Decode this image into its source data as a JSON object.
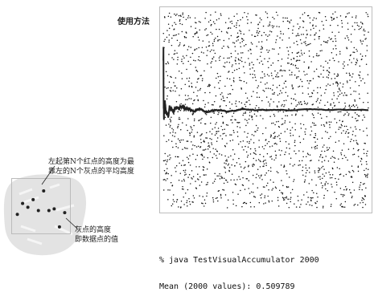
{
  "section_label": "使用方法",
  "annotations": {
    "top_line1": "左起第N个红点的高度为最",
    "top_line2": "靠左的N个灰点的平均高度",
    "bottom_line1": "灰点的高度",
    "bottom_line2": "即数据点的值"
  },
  "console": {
    "command": "% java TestVisualAccumulator 2000",
    "result": "Mean (2000 values): 0.509789"
  },
  "chart_data": [
    {
      "type": "scatter",
      "title": "",
      "xlabel": "",
      "ylabel": "",
      "x_range": [
        0,
        2000
      ],
      "ylim": [
        0,
        1
      ],
      "grid": false,
      "n_points": 2000,
      "series": [
        {
          "values_summary": "uniform random values in [0,1], one per index"
        },
        {
          "kind": "running-mean",
          "final_value": 0.509789
        }
      ]
    },
    {
      "type": "scatter",
      "title": "",
      "inset": true,
      "points": [
        {
          "x": 1,
          "y": 0.35
        },
        {
          "x": 2,
          "y": 0.55
        },
        {
          "x": 3,
          "y": 0.48
        },
        {
          "x": 4,
          "y": 0.62
        },
        {
          "x": 5,
          "y": 0.42
        },
        {
          "x": 6,
          "y": 0.78
        },
        {
          "x": 7,
          "y": 0.42
        },
        {
          "x": 8,
          "y": 0.45
        },
        {
          "x": 9,
          "y": 0.12
        },
        {
          "x": 10,
          "y": 0.38
        }
      ]
    }
  ],
  "colors": {
    "point": "#111111",
    "mean_line": "#222222",
    "frame": "#bdbdbd"
  }
}
